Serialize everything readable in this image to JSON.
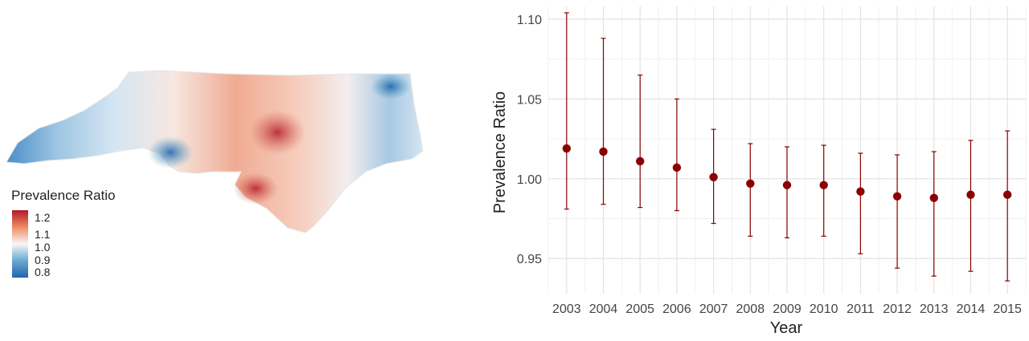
{
  "map": {
    "legend_title": "Prevalence Ratio",
    "legend_ticks": [
      "1.2",
      "1.1",
      "1.0",
      "0.9",
      "0.8"
    ],
    "colors": {
      "high": "#b2182b",
      "mid": "#f7f7f7",
      "low": "#2166ac"
    }
  },
  "chart_data": {
    "type": "scatter",
    "xlabel": "Year",
    "ylabel": "Prevalence Ratio",
    "categories": [
      "2003",
      "2004",
      "2005",
      "2006",
      "2007",
      "2008",
      "2009",
      "2010",
      "2011",
      "2012",
      "2013",
      "2014",
      "2015"
    ],
    "estimate": [
      1.019,
      1.017,
      1.011,
      1.007,
      1.001,
      0.997,
      0.996,
      0.996,
      0.992,
      0.989,
      0.988,
      0.99,
      0.99
    ],
    "lower": [
      0.981,
      0.984,
      0.982,
      0.98,
      0.972,
      0.964,
      0.963,
      0.964,
      0.953,
      0.944,
      0.939,
      0.942,
      0.936
    ],
    "upper": [
      1.104,
      1.088,
      1.065,
      1.05,
      1.031,
      1.022,
      1.02,
      1.021,
      1.016,
      1.015,
      1.017,
      1.024,
      1.03
    ],
    "yticks": [
      "0.95",
      "1.00",
      "1.05",
      "1.10"
    ],
    "ylim": [
      0.928,
      1.108
    ],
    "grid": true,
    "point_color": "#8b0000"
  }
}
